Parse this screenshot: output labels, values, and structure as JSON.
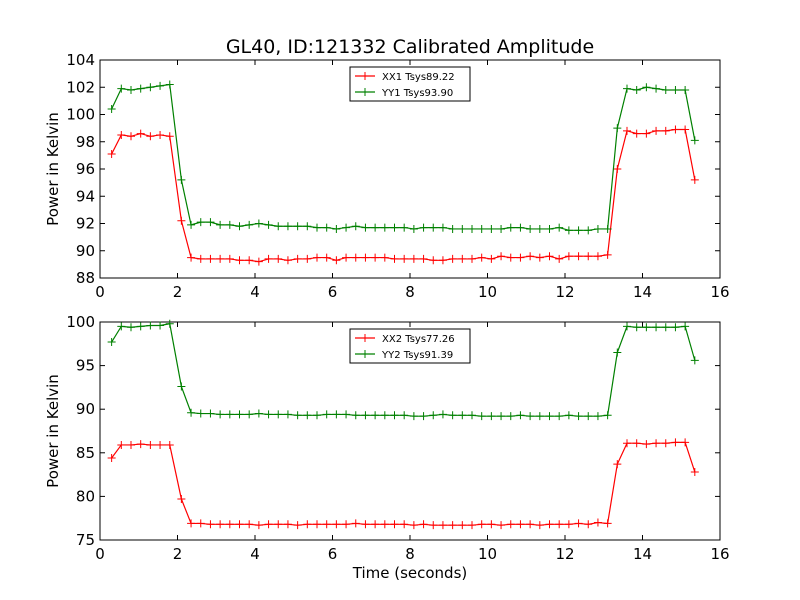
{
  "chart_data": {
    "type": "line",
    "title": "GL40, ID:121332 Calibrated Amplitude",
    "x_label": "Time (seconds)",
    "grid": false,
    "colors": {
      "red": "#ff0000",
      "green": "#008000"
    },
    "marker": "+",
    "panels": [
      {
        "ylabel": "Power in Kelvin",
        "xlim": [
          0,
          16
        ],
        "ylim": [
          88,
          104
        ],
        "xticks": [
          "0",
          "2",
          "4",
          "6",
          "8",
          "10",
          "12",
          "14",
          "16"
        ],
        "yticks": [
          "88",
          "90",
          "92",
          "94",
          "96",
          "98",
          "100",
          "102",
          "104"
        ],
        "legend_placement": "top-center",
        "series": [
          {
            "name": "XX1 Tsys89.22",
            "color": "#ff0000",
            "x": [
              0.3,
              0.55,
              0.8,
              1.05,
              1.3,
              1.55,
              1.8,
              2.1,
              2.35,
              2.6,
              2.85,
              3.1,
              3.35,
              3.6,
              3.85,
              4.1,
              4.35,
              4.6,
              4.85,
              5.1,
              5.35,
              5.6,
              5.85,
              6.1,
              6.35,
              6.6,
              6.85,
              7.1,
              7.35,
              7.6,
              7.85,
              8.1,
              8.35,
              8.6,
              8.85,
              9.1,
              9.35,
              9.6,
              9.85,
              10.1,
              10.35,
              10.6,
              10.85,
              11.1,
              11.35,
              11.6,
              11.85,
              12.1,
              12.35,
              12.6,
              12.85,
              13.1,
              13.35,
              13.6,
              13.85,
              14.1,
              14.35,
              14.6,
              14.85,
              15.1,
              15.35
            ],
            "y": [
              97.1,
              98.5,
              98.4,
              98.6,
              98.4,
              98.5,
              98.4,
              92.2,
              89.5,
              89.4,
              89.4,
              89.4,
              89.4,
              89.3,
              89.3,
              89.2,
              89.4,
              89.4,
              89.3,
              89.4,
              89.4,
              89.5,
              89.5,
              89.3,
              89.5,
              89.5,
              89.5,
              89.5,
              89.5,
              89.4,
              89.4,
              89.4,
              89.4,
              89.3,
              89.3,
              89.4,
              89.4,
              89.4,
              89.5,
              89.4,
              89.6,
              89.5,
              89.5,
              89.6,
              89.5,
              89.6,
              89.4,
              89.6,
              89.6,
              89.6,
              89.6,
              89.7,
              96.0,
              98.8,
              98.6,
              98.6,
              98.8,
              98.8,
              98.9,
              98.9,
              95.2
            ]
          },
          {
            "name": "YY1 Tsys93.90",
            "color": "#008000",
            "x": [
              0.3,
              0.55,
              0.8,
              1.05,
              1.3,
              1.55,
              1.8,
              2.1,
              2.35,
              2.6,
              2.85,
              3.1,
              3.35,
              3.6,
              3.85,
              4.1,
              4.35,
              4.6,
              4.85,
              5.1,
              5.35,
              5.6,
              5.85,
              6.1,
              6.35,
              6.6,
              6.85,
              7.1,
              7.35,
              7.6,
              7.85,
              8.1,
              8.35,
              8.6,
              8.85,
              9.1,
              9.35,
              9.6,
              9.85,
              10.1,
              10.35,
              10.6,
              10.85,
              11.1,
              11.35,
              11.6,
              11.85,
              12.1,
              12.35,
              12.6,
              12.85,
              13.1,
              13.35,
              13.6,
              13.85,
              14.1,
              14.35,
              14.6,
              14.85,
              15.1,
              15.35
            ],
            "y": [
              100.4,
              101.9,
              101.8,
              101.9,
              102.0,
              102.1,
              102.2,
              95.2,
              91.9,
              92.1,
              92.1,
              91.9,
              91.9,
              91.8,
              91.9,
              92.0,
              91.9,
              91.8,
              91.8,
              91.8,
              91.8,
              91.7,
              91.7,
              91.6,
              91.7,
              91.8,
              91.7,
              91.7,
              91.7,
              91.7,
              91.7,
              91.6,
              91.7,
              91.7,
              91.7,
              91.6,
              91.6,
              91.6,
              91.6,
              91.6,
              91.6,
              91.7,
              91.7,
              91.6,
              91.6,
              91.6,
              91.7,
              91.5,
              91.5,
              91.5,
              91.6,
              91.6,
              99.0,
              101.9,
              101.8,
              102.0,
              101.9,
              101.8,
              101.8,
              101.8,
              98.1
            ]
          }
        ]
      },
      {
        "ylabel": "Power in Kelvin",
        "xlim": [
          0,
          16
        ],
        "ylim": [
          75,
          100
        ],
        "xticks": [
          "0",
          "2",
          "4",
          "6",
          "8",
          "10",
          "12",
          "14",
          "16"
        ],
        "yticks": [
          "75",
          "80",
          "85",
          "90",
          "95",
          "100"
        ],
        "legend_placement": "top-center",
        "series": [
          {
            "name": "XX2 Tsys77.26",
            "color": "#ff0000",
            "x": [
              0.3,
              0.55,
              0.8,
              1.05,
              1.3,
              1.55,
              1.8,
              2.1,
              2.35,
              2.6,
              2.85,
              3.1,
              3.35,
              3.6,
              3.85,
              4.1,
              4.35,
              4.6,
              4.85,
              5.1,
              5.35,
              5.6,
              5.85,
              6.1,
              6.35,
              6.6,
              6.85,
              7.1,
              7.35,
              7.6,
              7.85,
              8.1,
              8.35,
              8.6,
              8.85,
              9.1,
              9.35,
              9.6,
              9.85,
              10.1,
              10.35,
              10.6,
              10.85,
              11.1,
              11.35,
              11.6,
              11.85,
              12.1,
              12.35,
              12.6,
              12.85,
              13.1,
              13.35,
              13.6,
              13.85,
              14.1,
              14.35,
              14.6,
              14.85,
              15.1,
              15.35
            ],
            "y": [
              84.4,
              85.9,
              85.9,
              86.0,
              85.9,
              85.9,
              85.9,
              79.7,
              76.9,
              76.9,
              76.8,
              76.8,
              76.8,
              76.8,
              76.8,
              76.7,
              76.8,
              76.8,
              76.8,
              76.7,
              76.8,
              76.8,
              76.8,
              76.8,
              76.8,
              76.9,
              76.8,
              76.8,
              76.8,
              76.8,
              76.8,
              76.7,
              76.8,
              76.7,
              76.7,
              76.7,
              76.7,
              76.7,
              76.8,
              76.8,
              76.7,
              76.8,
              76.8,
              76.8,
              76.7,
              76.8,
              76.8,
              76.8,
              76.9,
              76.8,
              77.0,
              76.9,
              83.7,
              86.1,
              86.1,
              86.0,
              86.1,
              86.1,
              86.2,
              86.2,
              82.8
            ]
          },
          {
            "name": "YY2 Tsys91.39",
            "color": "#008000",
            "x": [
              0.3,
              0.55,
              0.8,
              1.05,
              1.3,
              1.55,
              1.8,
              2.1,
              2.35,
              2.6,
              2.85,
              3.1,
              3.35,
              3.6,
              3.85,
              4.1,
              4.35,
              4.6,
              4.85,
              5.1,
              5.35,
              5.6,
              5.85,
              6.1,
              6.35,
              6.6,
              6.85,
              7.1,
              7.35,
              7.6,
              7.85,
              8.1,
              8.35,
              8.6,
              8.85,
              9.1,
              9.35,
              9.6,
              9.85,
              10.1,
              10.35,
              10.6,
              10.85,
              11.1,
              11.35,
              11.6,
              11.85,
              12.1,
              12.35,
              12.6,
              12.85,
              13.1,
              13.35,
              13.6,
              13.85,
              14.1,
              14.35,
              14.6,
              14.85,
              15.1,
              15.35
            ],
            "y": [
              97.7,
              99.5,
              99.4,
              99.5,
              99.6,
              99.6,
              99.8,
              92.6,
              89.6,
              89.5,
              89.5,
              89.4,
              89.4,
              89.4,
              89.4,
              89.5,
              89.4,
              89.4,
              89.4,
              89.3,
              89.3,
              89.3,
              89.4,
              89.4,
              89.4,
              89.3,
              89.3,
              89.3,
              89.3,
              89.3,
              89.3,
              89.2,
              89.2,
              89.3,
              89.4,
              89.3,
              89.3,
              89.3,
              89.2,
              89.2,
              89.2,
              89.2,
              89.3,
              89.2,
              89.2,
              89.2,
              89.2,
              89.3,
              89.2,
              89.2,
              89.2,
              89.3,
              96.5,
              99.5,
              99.4,
              99.4,
              99.4,
              99.4,
              99.4,
              99.5,
              95.6
            ]
          }
        ]
      }
    ]
  }
}
